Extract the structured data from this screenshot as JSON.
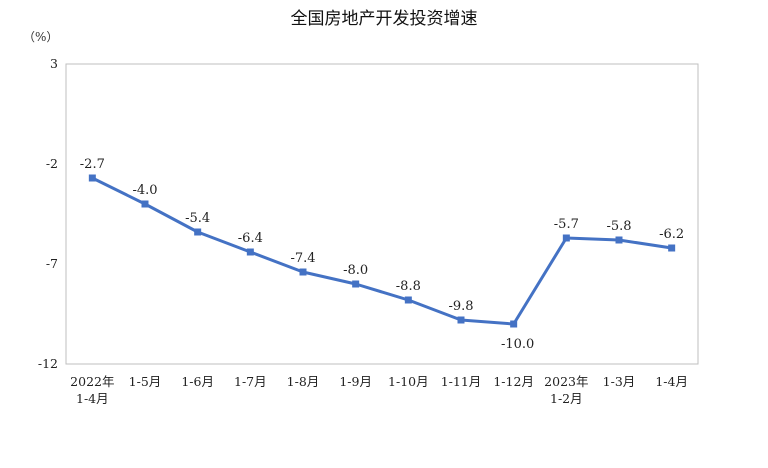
{
  "chart_data": {
    "type": "line",
    "title": "全国房地产开发投资增速",
    "unit_label": "（%）",
    "categories": [
      [
        "2022年",
        "1-4月"
      ],
      [
        "1-5月"
      ],
      [
        "1-6月"
      ],
      [
        "1-7月"
      ],
      [
        "1-8月"
      ],
      [
        "1-9月"
      ],
      [
        "1-10月"
      ],
      [
        "1-11月"
      ],
      [
        "1-12月"
      ],
      [
        "2023年",
        "1-2月"
      ],
      [
        "1-3月"
      ],
      [
        "1-4月"
      ]
    ],
    "values": [
      -2.7,
      -4.0,
      -5.4,
      -6.4,
      -7.4,
      -8.0,
      -8.8,
      -9.8,
      -10.0,
      -5.7,
      -5.8,
      -6.2
    ],
    "data_labels": [
      "-2.7",
      "-4.0",
      "-5.4",
      "-6.4",
      "-7.4",
      "-8.0",
      "-8.8",
      "-9.8",
      "-10.0",
      "-5.7",
      "-5.8",
      "-6.2"
    ],
    "yticks": [
      3,
      -2,
      -7,
      -12
    ],
    "ylim": [
      -12,
      3
    ],
    "grid": false,
    "colors": {
      "line": "#4472C4",
      "axis": "#bfbfbf"
    }
  }
}
